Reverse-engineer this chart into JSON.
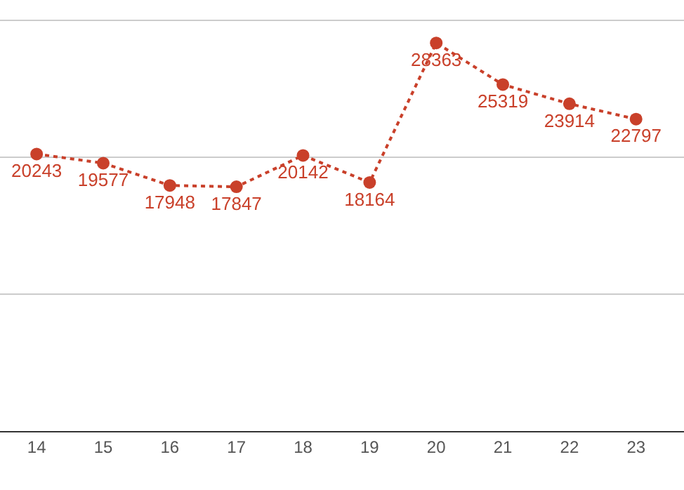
{
  "chart_data": {
    "type": "line",
    "x": [
      14,
      15,
      16,
      17,
      18,
      19,
      20,
      21,
      22,
      23
    ],
    "series": [
      {
        "color": "#c9402a",
        "values": [
          20243,
          19577,
          17948,
          17847,
          20142,
          18164,
          28363,
          25319,
          23914,
          22797
        ]
      }
    ],
    "data_labels": true,
    "marker": "circle",
    "line_style": "dotted",
    "grid": "y",
    "legend": false,
    "tick_labels": "x",
    "xlim": [
      13.45,
      23.72
    ],
    "xticks": [
      14,
      15,
      16,
      17,
      18,
      19,
      20,
      21,
      22,
      23
    ],
    "ylim": [
      0,
      31500
    ],
    "yticks": [
      {
        "value": 0,
        "label": null
      },
      {
        "value": 10000,
        "label": null
      },
      {
        "value": 20000,
        "label": null
      },
      {
        "value": 30000,
        "label": null
      }
    ]
  }
}
